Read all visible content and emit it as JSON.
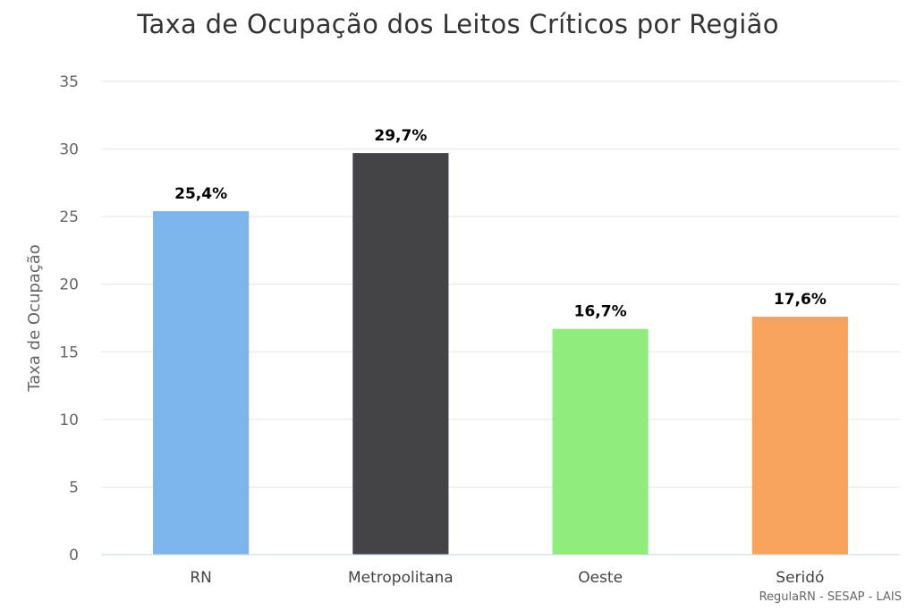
{
  "chart_data": {
    "type": "bar",
    "title": "Taxa de Ocupação dos Leitos Críticos por Região",
    "xlabel": "",
    "ylabel": "Taxa de Ocupação",
    "categories": [
      "RN",
      "Metropolitana",
      "Oeste",
      "Seridó"
    ],
    "values": [
      25.4,
      29.7,
      16.7,
      17.6
    ],
    "value_labels": [
      "25,4%",
      "29,7%",
      "16,7%",
      "17,6%"
    ],
    "colors": [
      "#7cb5ec",
      "#434348",
      "#90ed7d",
      "#f7a35c"
    ],
    "ylim": [
      0,
      35
    ],
    "yticks": [
      0,
      5,
      10,
      15,
      20,
      25,
      30,
      35
    ],
    "grid": true,
    "legend": "none"
  },
  "credits": "RegulaRN - SESAP - LAIS"
}
